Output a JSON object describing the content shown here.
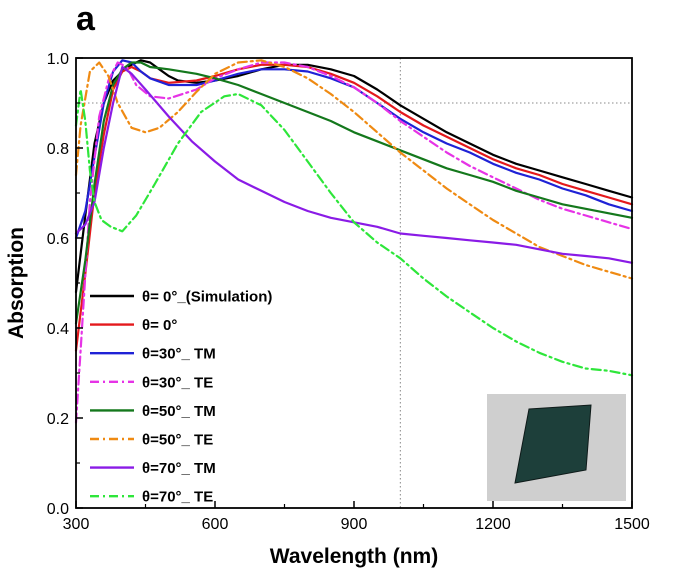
{
  "panel_label": "a",
  "chart_data": {
    "type": "line",
    "xlabel": "Wavelength (nm)",
    "ylabel": "Absorption",
    "xlim": [
      300,
      1500
    ],
    "ylim": [
      0.0,
      1.0
    ],
    "x_ticks": [
      300,
      600,
      900,
      1200,
      1500
    ],
    "x_tick_labels": [
      "300",
      "600",
      "900",
      "1200",
      "1500"
    ],
    "y_ticks": [
      0.0,
      0.2,
      0.4,
      0.6,
      0.8,
      1.0
    ],
    "y_tick_labels": [
      "0.0",
      "0.2",
      "0.4",
      "0.6",
      "0.8",
      "1.0"
    ],
    "grid": false,
    "reference_lines": [
      {
        "orientation": "horizontal",
        "value": 0.9,
        "style": "dotted",
        "color": "#888888"
      },
      {
        "orientation": "vertical",
        "value": 1000,
        "style": "dotted",
        "color": "#888888"
      }
    ],
    "legend_placement": "left",
    "series": [
      {
        "name": "θ= 0°_(Simulation)",
        "color": "#000000",
        "dash": "solid",
        "points": [
          [
            300,
            0.48
          ],
          [
            320,
            0.65
          ],
          [
            340,
            0.81
          ],
          [
            360,
            0.9
          ],
          [
            380,
            0.95
          ],
          [
            400,
            0.97
          ],
          [
            420,
            0.985
          ],
          [
            440,
            0.995
          ],
          [
            460,
            0.99
          ],
          [
            480,
            0.975
          ],
          [
            500,
            0.96
          ],
          [
            520,
            0.95
          ],
          [
            560,
            0.945
          ],
          [
            600,
            0.95
          ],
          [
            650,
            0.96
          ],
          [
            700,
            0.975
          ],
          [
            750,
            0.985
          ],
          [
            800,
            0.985
          ],
          [
            850,
            0.975
          ],
          [
            900,
            0.96
          ],
          [
            950,
            0.93
          ],
          [
            1000,
            0.895
          ],
          [
            1050,
            0.865
          ],
          [
            1100,
            0.835
          ],
          [
            1150,
            0.81
          ],
          [
            1200,
            0.785
          ],
          [
            1250,
            0.765
          ],
          [
            1300,
            0.75
          ],
          [
            1350,
            0.735
          ],
          [
            1400,
            0.72
          ],
          [
            1450,
            0.705
          ],
          [
            1500,
            0.69
          ]
        ]
      },
      {
        "name": "θ= 0°",
        "color": "#e4191c",
        "dash": "solid",
        "points": [
          [
            300,
            0.35
          ],
          [
            320,
            0.52
          ],
          [
            340,
            0.7
          ],
          [
            360,
            0.83
          ],
          [
            380,
            0.93
          ],
          [
            400,
            0.97
          ],
          [
            420,
            0.98
          ],
          [
            440,
            0.97
          ],
          [
            460,
            0.955
          ],
          [
            500,
            0.945
          ],
          [
            560,
            0.95
          ],
          [
            600,
            0.96
          ],
          [
            650,
            0.975
          ],
          [
            700,
            0.985
          ],
          [
            750,
            0.985
          ],
          [
            800,
            0.98
          ],
          [
            850,
            0.965
          ],
          [
            900,
            0.945
          ],
          [
            950,
            0.915
          ],
          [
            1000,
            0.88
          ],
          [
            1050,
            0.85
          ],
          [
            1100,
            0.825
          ],
          [
            1150,
            0.8
          ],
          [
            1200,
            0.775
          ],
          [
            1250,
            0.755
          ],
          [
            1300,
            0.74
          ],
          [
            1350,
            0.72
          ],
          [
            1400,
            0.705
          ],
          [
            1450,
            0.69
          ],
          [
            1500,
            0.675
          ]
        ]
      },
      {
        "name": "θ=30°_ TM",
        "color": "#1f22d6",
        "dash": "solid",
        "points": [
          [
            300,
            0.6
          ],
          [
            320,
            0.66
          ],
          [
            340,
            0.78
          ],
          [
            360,
            0.9
          ],
          [
            380,
            0.97
          ],
          [
            400,
            0.995
          ],
          [
            420,
            0.99
          ],
          [
            440,
            0.97
          ],
          [
            460,
            0.955
          ],
          [
            500,
            0.94
          ],
          [
            560,
            0.94
          ],
          [
            600,
            0.95
          ],
          [
            650,
            0.965
          ],
          [
            700,
            0.975
          ],
          [
            750,
            0.975
          ],
          [
            800,
            0.97
          ],
          [
            850,
            0.955
          ],
          [
            900,
            0.935
          ],
          [
            950,
            0.9
          ],
          [
            1000,
            0.865
          ],
          [
            1050,
            0.835
          ],
          [
            1100,
            0.81
          ],
          [
            1150,
            0.79
          ],
          [
            1200,
            0.765
          ],
          [
            1250,
            0.745
          ],
          [
            1300,
            0.73
          ],
          [
            1350,
            0.71
          ],
          [
            1400,
            0.695
          ],
          [
            1450,
            0.675
          ],
          [
            1500,
            0.66
          ]
        ]
      },
      {
        "name": "θ=30°_ TE",
        "color": "#e633e6",
        "dash": "dashdot",
        "points": [
          [
            300,
            0.19
          ],
          [
            310,
            0.35
          ],
          [
            330,
            0.68
          ],
          [
            350,
            0.87
          ],
          [
            370,
            0.95
          ],
          [
            390,
            0.99
          ],
          [
            410,
            0.98
          ],
          [
            430,
            0.94
          ],
          [
            460,
            0.915
          ],
          [
            500,
            0.91
          ],
          [
            560,
            0.93
          ],
          [
            600,
            0.955
          ],
          [
            650,
            0.975
          ],
          [
            700,
            0.99
          ],
          [
            750,
            0.99
          ],
          [
            800,
            0.98
          ],
          [
            850,
            0.96
          ],
          [
            900,
            0.935
          ],
          [
            950,
            0.9
          ],
          [
            1000,
            0.86
          ],
          [
            1050,
            0.825
          ],
          [
            1100,
            0.79
          ],
          [
            1150,
            0.76
          ],
          [
            1200,
            0.735
          ],
          [
            1250,
            0.71
          ],
          [
            1300,
            0.685
          ],
          [
            1350,
            0.665
          ],
          [
            1400,
            0.65
          ],
          [
            1450,
            0.635
          ],
          [
            1500,
            0.62
          ]
        ]
      },
      {
        "name": "θ=50°_ TM",
        "color": "#14781c",
        "dash": "solid",
        "points": [
          [
            300,
            0.41
          ],
          [
            320,
            0.55
          ],
          [
            340,
            0.72
          ],
          [
            360,
            0.86
          ],
          [
            380,
            0.94
          ],
          [
            400,
            0.975
          ],
          [
            420,
            0.99
          ],
          [
            440,
            0.99
          ],
          [
            460,
            0.98
          ],
          [
            500,
            0.975
          ],
          [
            560,
            0.965
          ],
          [
            600,
            0.955
          ],
          [
            650,
            0.94
          ],
          [
            700,
            0.92
          ],
          [
            750,
            0.9
          ],
          [
            800,
            0.88
          ],
          [
            850,
            0.86
          ],
          [
            900,
            0.835
          ],
          [
            950,
            0.815
          ],
          [
            1000,
            0.795
          ],
          [
            1050,
            0.775
          ],
          [
            1100,
            0.755
          ],
          [
            1150,
            0.74
          ],
          [
            1200,
            0.725
          ],
          [
            1250,
            0.705
          ],
          [
            1300,
            0.69
          ],
          [
            1350,
            0.675
          ],
          [
            1400,
            0.665
          ],
          [
            1450,
            0.655
          ],
          [
            1500,
            0.645
          ]
        ]
      },
      {
        "name": "θ=50°_ TE",
        "color": "#ef8a12",
        "dash": "dashdot",
        "points": [
          [
            300,
            0.74
          ],
          [
            310,
            0.85
          ],
          [
            330,
            0.97
          ],
          [
            350,
            0.99
          ],
          [
            370,
            0.96
          ],
          [
            390,
            0.9
          ],
          [
            420,
            0.845
          ],
          [
            450,
            0.835
          ],
          [
            480,
            0.845
          ],
          [
            520,
            0.88
          ],
          [
            560,
            0.925
          ],
          [
            600,
            0.965
          ],
          [
            650,
            0.99
          ],
          [
            700,
            0.995
          ],
          [
            750,
            0.98
          ],
          [
            800,
            0.955
          ],
          [
            850,
            0.92
          ],
          [
            900,
            0.88
          ],
          [
            950,
            0.835
          ],
          [
            1000,
            0.79
          ],
          [
            1050,
            0.75
          ],
          [
            1100,
            0.71
          ],
          [
            1150,
            0.675
          ],
          [
            1200,
            0.64
          ],
          [
            1250,
            0.61
          ],
          [
            1300,
            0.58
          ],
          [
            1350,
            0.56
          ],
          [
            1400,
            0.54
          ],
          [
            1450,
            0.525
          ],
          [
            1500,
            0.51
          ]
        ]
      },
      {
        "name": "θ=70°_ TM",
        "color": "#8a1be6",
        "dash": "solid",
        "points": [
          [
            300,
            0.61
          ],
          [
            320,
            0.63
          ],
          [
            340,
            0.68
          ],
          [
            360,
            0.8
          ],
          [
            380,
            0.9
          ],
          [
            400,
            0.98
          ],
          [
            420,
            0.965
          ],
          [
            450,
            0.93
          ],
          [
            500,
            0.87
          ],
          [
            550,
            0.815
          ],
          [
            600,
            0.77
          ],
          [
            650,
            0.73
          ],
          [
            700,
            0.705
          ],
          [
            750,
            0.68
          ],
          [
            800,
            0.66
          ],
          [
            850,
            0.645
          ],
          [
            900,
            0.635
          ],
          [
            950,
            0.625
          ],
          [
            1000,
            0.61
          ],
          [
            1050,
            0.605
          ],
          [
            1100,
            0.6
          ],
          [
            1150,
            0.595
          ],
          [
            1200,
            0.59
          ],
          [
            1250,
            0.585
          ],
          [
            1300,
            0.575
          ],
          [
            1350,
            0.565
          ],
          [
            1400,
            0.56
          ],
          [
            1450,
            0.555
          ],
          [
            1500,
            0.545
          ]
        ]
      },
      {
        "name": "θ=70°_ TE",
        "color": "#2ee63a",
        "dash": "dashdot",
        "points": [
          [
            300,
            0.85
          ],
          [
            310,
            0.93
          ],
          [
            320,
            0.86
          ],
          [
            330,
            0.75
          ],
          [
            340,
            0.68
          ],
          [
            355,
            0.64
          ],
          [
            375,
            0.625
          ],
          [
            400,
            0.615
          ],
          [
            430,
            0.65
          ],
          [
            470,
            0.72
          ],
          [
            520,
            0.81
          ],
          [
            570,
            0.88
          ],
          [
            620,
            0.915
          ],
          [
            650,
            0.92
          ],
          [
            700,
            0.895
          ],
          [
            750,
            0.84
          ],
          [
            800,
            0.77
          ],
          [
            850,
            0.7
          ],
          [
            900,
            0.635
          ],
          [
            950,
            0.59
          ],
          [
            1000,
            0.555
          ],
          [
            1050,
            0.51
          ],
          [
            1100,
            0.47
          ],
          [
            1150,
            0.435
          ],
          [
            1200,
            0.4
          ],
          [
            1250,
            0.37
          ],
          [
            1300,
            0.345
          ],
          [
            1350,
            0.325
          ],
          [
            1400,
            0.31
          ],
          [
            1450,
            0.305
          ],
          [
            1500,
            0.295
          ]
        ]
      }
    ]
  },
  "inset": {
    "background_color": "#cfcfcf",
    "sample_color": "#1d3f3a"
  }
}
